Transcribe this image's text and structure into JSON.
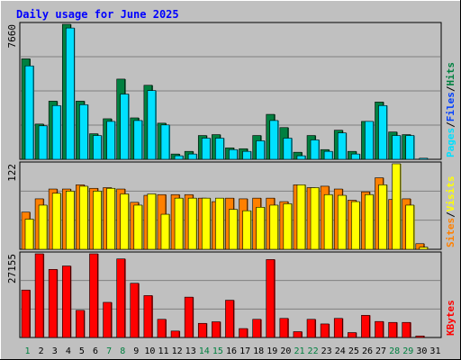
{
  "title": "Daily usage for June 2025",
  "colors": {
    "background": "#c0c0c0",
    "plot_background": "#c0c0c0",
    "hits": "#008040",
    "files": "#00e0ff",
    "sites": "#ff8000",
    "visits": "#ffff00",
    "kbytes": "#ff0000",
    "weekday_label": "#000000",
    "weekend_label": "#008040"
  },
  "panels": {
    "top": {
      "max_label": "7660",
      "legend": [
        "Pages",
        "/",
        "Files",
        "/",
        "Hits"
      ],
      "legend_colors": [
        "#00e0ff",
        "#000000",
        "#0040ff",
        "#000000",
        "#008040"
      ]
    },
    "middle": {
      "max_label": "122",
      "legend": [
        "Sites",
        "/",
        "Visits"
      ],
      "legend_colors": [
        "#ff8000",
        "#000000",
        "#ffff00"
      ]
    },
    "bottom": {
      "max_label": "27155",
      "legend": [
        "KBytes"
      ],
      "legend_colors": [
        "#ff0000"
      ]
    }
  },
  "chart_data": {
    "type": "bar",
    "title": "Daily usage for June 2025",
    "categories": [
      "1",
      "2",
      "3",
      "4",
      "5",
      "6",
      "7",
      "8",
      "9",
      "10",
      "11",
      "12",
      "13",
      "14",
      "15",
      "16",
      "17",
      "18",
      "19",
      "20",
      "21",
      "22",
      "23",
      "24",
      "25",
      "26",
      "27",
      "28",
      "29",
      "30",
      "31"
    ],
    "weekend_days": [
      "1",
      "7",
      "8",
      "14",
      "15",
      "21",
      "22",
      "28",
      "29"
    ],
    "panels": [
      {
        "name": "hits-files",
        "ylim": [
          0,
          7660
        ],
        "series": [
          {
            "name": "Hits",
            "values": [
              5700,
              2000,
              3300,
              7660,
              3300,
              1450,
              2300,
              4550,
              2350,
              4200,
              2050,
              300,
              450,
              1350,
              1400,
              650,
              600,
              1350,
              2550,
              1800,
              400,
              1350,
              550,
              1650,
              450,
              2150,
              3250,
              1550,
              1400,
              0,
              0
            ]
          },
          {
            "name": "Files",
            "values": [
              5300,
              1900,
              3050,
              7450,
              3100,
              1350,
              2150,
              3700,
              2200,
              3900,
              1950,
              200,
              300,
              1200,
              1200,
              550,
              450,
              1050,
              2200,
              1200,
              200,
              1100,
              450,
              1500,
              300,
              2150,
              3050,
              1350,
              1350,
              60,
              0
            ]
          },
          {
            "name": "Pages",
            "values": [
              0,
              0,
              0,
              0,
              0,
              0,
              0,
              0,
              0,
              0,
              0,
              0,
              0,
              0,
              0,
              0,
              0,
              0,
              0,
              0,
              0,
              0,
              0,
              0,
              0,
              0,
              0,
              0,
              0,
              0,
              0
            ]
          }
        ]
      },
      {
        "name": "sites-visits",
        "ylim": [
          0,
          122
        ],
        "series": [
          {
            "name": "Sites",
            "values": [
              53,
              72,
              86,
              86,
              92,
              87,
              88,
              86,
              67,
              77,
              78,
              78,
              78,
              73,
              68,
              73,
              72,
              73,
              73,
              68,
              92,
              88,
              90,
              86,
              70,
              82,
              102,
              71,
              72,
              8,
              0
            ]
          },
          {
            "name": "Visits",
            "values": [
              43,
              63,
              80,
              83,
              90,
              83,
              87,
              79,
              63,
              79,
              50,
              73,
              73,
              73,
              73,
              57,
              55,
              60,
              63,
              65,
              92,
              88,
              78,
              77,
              68,
              78,
              92,
              122,
              63,
              3,
              0
            ]
          }
        ]
      },
      {
        "name": "kbytes",
        "ylim": [
          0,
          27155
        ],
        "series": [
          {
            "name": "KBytes",
            "values": [
              15400,
              27155,
              22100,
              23200,
              8800,
              27155,
              11400,
              25500,
              17600,
              13600,
              5900,
              2100,
              13100,
              4600,
              5100,
              12100,
              2900,
              5900,
              25300,
              6200,
              1900,
              5900,
              4400,
              6200,
              1600,
              7200,
              5200,
              4900,
              4900,
              500,
              0
            ]
          }
        ]
      }
    ]
  }
}
